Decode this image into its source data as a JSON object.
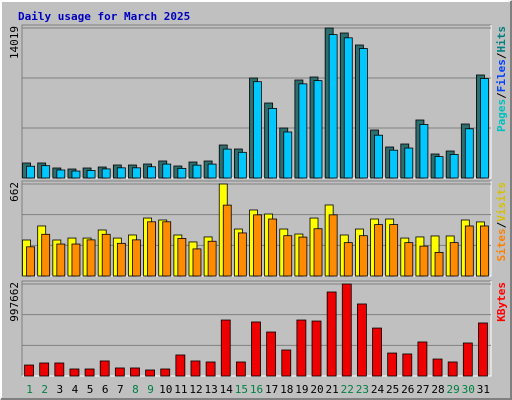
{
  "title": "Daily usage for March 2025",
  "chart_data": [
    {
      "type": "bar",
      "ylim": [
        0,
        14019
      ],
      "yticks": [
        14019
      ],
      "grid_divisions": 3,
      "legend": [
        {
          "name": "Pages",
          "color": "#00c0c0"
        },
        {
          "name": "Files",
          "color": "#0040ff"
        },
        {
          "name": "Hits",
          "color": "#008080"
        }
      ],
      "legend_separator": "/",
      "series": [
        {
          "color": "#2e6e6e",
          "values": [
            1402,
            1402,
            935,
            841,
            935,
            1028,
            1215,
            1215,
            1308,
            1589,
            1122,
            1495,
            1589,
            3084,
            2710,
            9346,
            7009,
            4673,
            9159,
            9439,
            14019,
            13552,
            12430,
            4486,
            2897,
            3178,
            5421,
            2243,
            2523,
            5047,
            9627
          ]
        },
        {
          "color": "#00c8ff",
          "values": [
            1100,
            1150,
            750,
            650,
            700,
            850,
            950,
            950,
            1050,
            1300,
            900,
            1200,
            1300,
            2700,
            2400,
            9000,
            6500,
            4300,
            8800,
            9100,
            13400,
            13100,
            12100,
            4000,
            2600,
            2800,
            5000,
            2000,
            2200,
            4600,
            9300
          ]
        }
      ]
    },
    {
      "type": "bar",
      "ylim": [
        0,
        662
      ],
      "yticks": [
        662
      ],
      "grid_divisions": 3,
      "legend": [
        {
          "name": "Sites",
          "color": "#ff8000"
        },
        {
          "name": "Visits",
          "color": "#d8c000"
        }
      ],
      "legend_separator": "/",
      "series": [
        {
          "color": "#ffff00",
          "values": [
            259,
            360,
            259,
            273,
            273,
            331,
            273,
            295,
            417,
            403,
            295,
            245,
            281,
            662,
            338,
            475,
            446,
            338,
            302,
            417,
            511,
            295,
            338,
            410,
            410,
            273,
            281,
            288,
            288,
            403,
            389
          ]
        },
        {
          "color": "#ff8c00",
          "values": [
            210,
            300,
            230,
            230,
            260,
            300,
            235,
            260,
            390,
            390,
            270,
            195,
            250,
            510,
            310,
            440,
            410,
            290,
            280,
            340,
            440,
            240,
            290,
            370,
            370,
            240,
            215,
            170,
            240,
            360,
            360
          ]
        }
      ]
    },
    {
      "type": "bar",
      "ylim": [
        0,
        997662
      ],
      "yticks": [
        997662
      ],
      "grid_divisions": 3,
      "legend": [
        {
          "name": "KBytes",
          "color": "#ff0000"
        }
      ],
      "categories": [
        "1",
        "2",
        "3",
        "4",
        "5",
        "6",
        "7",
        "8",
        "9",
        "10",
        "11",
        "12",
        "13",
        "14",
        "15",
        "16",
        "17",
        "18",
        "19",
        "20",
        "21",
        "22",
        "23",
        "24",
        "25",
        "26",
        "27",
        "28",
        "29",
        "30",
        "31"
      ],
      "category_colors": [
        "#008040",
        "#008040",
        "#000000",
        "#000000",
        "#000000",
        "#000000",
        "#000000",
        "#008040",
        "#008040",
        "#000000",
        "#000000",
        "#000000",
        "#000000",
        "#000000",
        "#008040",
        "#008040",
        "#000000",
        "#000000",
        "#000000",
        "#000000",
        "#000000",
        "#008040",
        "#008040",
        "#000000",
        "#000000",
        "#000000",
        "#000000",
        "#000000",
        "#008040",
        "#008040",
        "#000000"
      ],
      "series": [
        {
          "color": "#ee0000",
          "values": [
            119000,
            141000,
            141000,
            76000,
            76000,
            163000,
            87000,
            87000,
            65000,
            76000,
            228000,
            163000,
            152000,
            607000,
            152000,
            586000,
            477000,
            282000,
            607000,
            596000,
            911000,
            997662,
            781000,
            520000,
            249000,
            239000,
            369000,
            184000,
            152000,
            358000,
            575000
          ]
        }
      ]
    }
  ]
}
